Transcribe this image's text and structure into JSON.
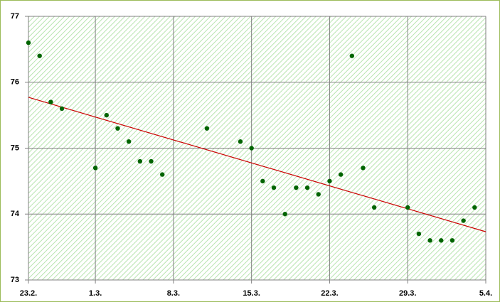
{
  "chart_data": {
    "type": "scatter",
    "x": [
      "23.2.",
      "24.2.",
      "25.2.",
      "26.2.",
      "1.3.",
      "2.3.",
      "3.3.",
      "4.3.",
      "5.3.",
      "6.3.",
      "7.3.",
      "11.3.",
      "14.3.",
      "15.3.",
      "16.3.",
      "17.3.",
      "18.3.",
      "19.3.",
      "20.3.",
      "21.3.",
      "22.3.",
      "23.3.",
      "24.3.",
      "25.3.",
      "26.3.",
      "29.3.",
      "30.3.",
      "31.3.",
      "1.4.",
      "2.4.",
      "3.4.",
      "4.4."
    ],
    "series": [
      {
        "color": "#006400",
        "values": [
          76.6,
          76.4,
          75.7,
          75.6,
          74.7,
          75.5,
          75.3,
          75.1,
          74.8,
          74.8,
          74.6,
          75.3,
          75.1,
          75.0,
          74.5,
          74.4,
          74.0,
          74.4,
          74.4,
          74.3,
          74.5,
          74.6,
          76.4,
          74.7,
          74.1,
          74.1,
          73.7,
          73.6,
          73.6,
          73.6,
          73.9,
          74.1
        ]
      }
    ],
    "trendline": true,
    "trendline_color": "#cc0000",
    "xlim": [
      "23.2.",
      "5.4."
    ],
    "xticks": [
      "23.2.",
      "1.3.",
      "8.3.",
      "15.3.",
      "22.3.",
      "29.3.",
      "5.4."
    ],
    "ylim": [
      73,
      77
    ],
    "yticks": [
      73,
      74,
      75,
      76,
      77
    ],
    "grid": true
  }
}
